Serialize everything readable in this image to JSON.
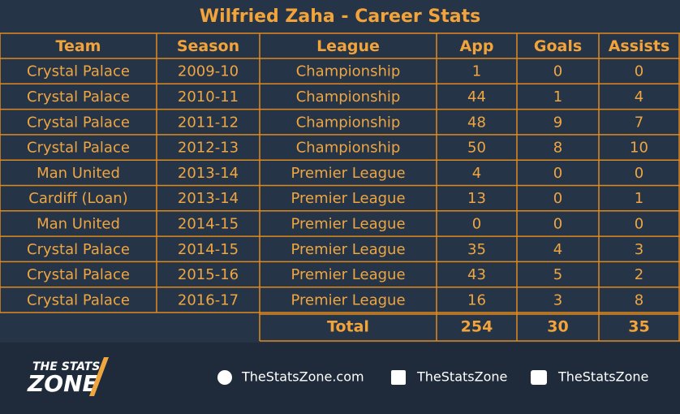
{
  "header": {
    "title": "Wilfried Zaha - Career Stats"
  },
  "table": {
    "columns": [
      "Team",
      "Season",
      "League",
      "App",
      "Goals",
      "Assists"
    ],
    "rows": [
      [
        "Crystal Palace",
        "2009-10",
        "Championship",
        1,
        0,
        0
      ],
      [
        "Crystal Palace",
        "2010-11",
        "Championship",
        44,
        1,
        4
      ],
      [
        "Crystal Palace",
        "2011-12",
        "Championship",
        48,
        9,
        7
      ],
      [
        "Crystal Palace",
        "2012-13",
        "Championship",
        50,
        8,
        10
      ],
      [
        "Man United",
        "2013-14",
        "Premier League",
        4,
        0,
        0
      ],
      [
        "Cardiff (Loan)",
        "2013-14",
        "Premier League",
        13,
        0,
        1
      ],
      [
        "Man United",
        "2014-15",
        "Premier League",
        0,
        0,
        0
      ],
      [
        "Crystal Palace",
        "2014-15",
        "Premier League",
        35,
        4,
        3
      ],
      [
        "Crystal Palace",
        "2015-16",
        "Premier League",
        43,
        5,
        2
      ],
      [
        "Crystal Palace",
        "2016-17",
        "Premier League",
        16,
        3,
        8
      ]
    ],
    "total": {
      "label": "Total",
      "values": [
        254,
        30,
        35
      ]
    }
  },
  "footer": {
    "logo_top": "THE STATS",
    "logo_bottom": "ZONE",
    "website": "TheStatsZone.com",
    "facebook": "TheStatsZone",
    "twitter": "TheStatsZone"
  }
}
